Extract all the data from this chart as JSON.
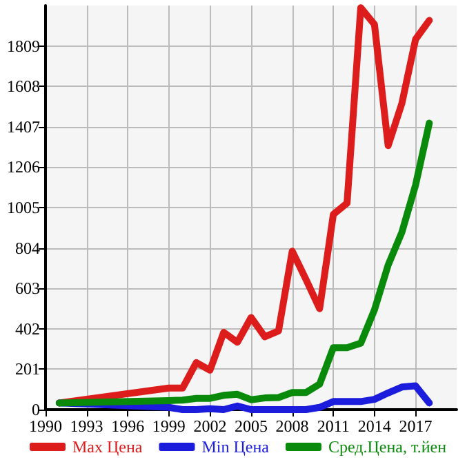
{
  "chart_data": {
    "type": "line",
    "xlim": [
      1990,
      2020
    ],
    "xticks": [
      1990,
      1993,
      1996,
      1999,
      2002,
      2005,
      2008,
      2011,
      2014,
      2017
    ],
    "ylim": [
      0,
      2010
    ],
    "yticks": [
      0,
      201,
      402,
      603,
      804,
      1005,
      1206,
      1407,
      1608,
      1809
    ],
    "grid": true,
    "legend": "bottom",
    "marker": "none",
    "line_style": "solid",
    "series": [
      {
        "name": "Max Цена",
        "color": "#dd1c1c",
        "x": [
          1991,
          1999,
          2000,
          2001,
          2002,
          2003,
          2004,
          2005,
          2006,
          2007,
          2008,
          2009,
          2010,
          2011,
          2012,
          2013,
          2014,
          2015,
          2016,
          2017,
          2018
        ],
        "values": [
          33,
          107,
          107,
          234,
          196,
          384,
          335,
          458,
          362,
          391,
          788,
          648,
          502,
          971,
          1027,
          1999,
          1916,
          1313,
          1523,
          1842,
          1936
        ]
      },
      {
        "name": "Min Цена",
        "color": "#1c1cdd",
        "x": [
          1991,
          1999,
          2000,
          2001,
          2002,
          2003,
          2004,
          2005,
          2006,
          2007,
          2008,
          2009,
          2010,
          2011,
          2012,
          2013,
          2014,
          2015,
          2016,
          2017,
          2018
        ],
        "values": [
          33,
          11,
          0,
          0,
          4,
          0,
          18,
          0,
          0,
          0,
          0,
          0,
          11,
          40,
          40,
          40,
          51,
          83,
          112,
          118,
          33
        ]
      },
      {
        "name": "Сред.Цена, т.йен",
        "color": "#0a8a0a",
        "x": [
          1991,
          1999,
          2000,
          2001,
          2002,
          2003,
          2004,
          2005,
          2006,
          2007,
          2008,
          2009,
          2010,
          2011,
          2012,
          2013,
          2014,
          2015,
          2016,
          2017,
          2018
        ],
        "values": [
          33,
          45,
          47,
          56,
          56,
          71,
          76,
          49,
          58,
          60,
          85,
          85,
          127,
          308,
          308,
          330,
          496,
          719,
          882,
          1117,
          1425
        ]
      }
    ]
  }
}
